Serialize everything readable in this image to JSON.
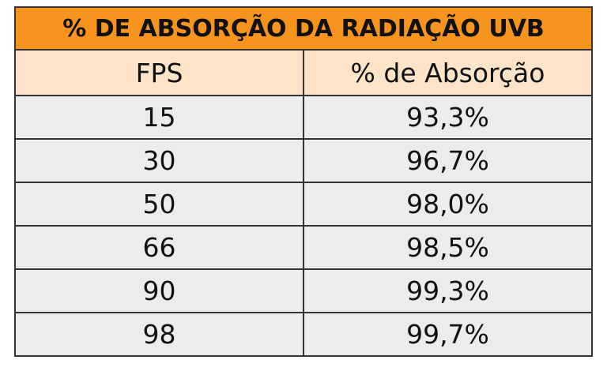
{
  "header": {
    "title": "% DE ABSORÇÃO DA RADIAÇÃO UVB"
  },
  "table": {
    "columns": [
      "FPS",
      "% de Absorção"
    ],
    "rows": [
      [
        15,
        "93,3%"
      ],
      [
        30,
        "96,7%"
      ],
      [
        50,
        "98,0%"
      ],
      [
        66,
        "98,5%"
      ],
      [
        90,
        "99,3%"
      ],
      [
        98,
        "99,7%"
      ]
    ]
  }
}
